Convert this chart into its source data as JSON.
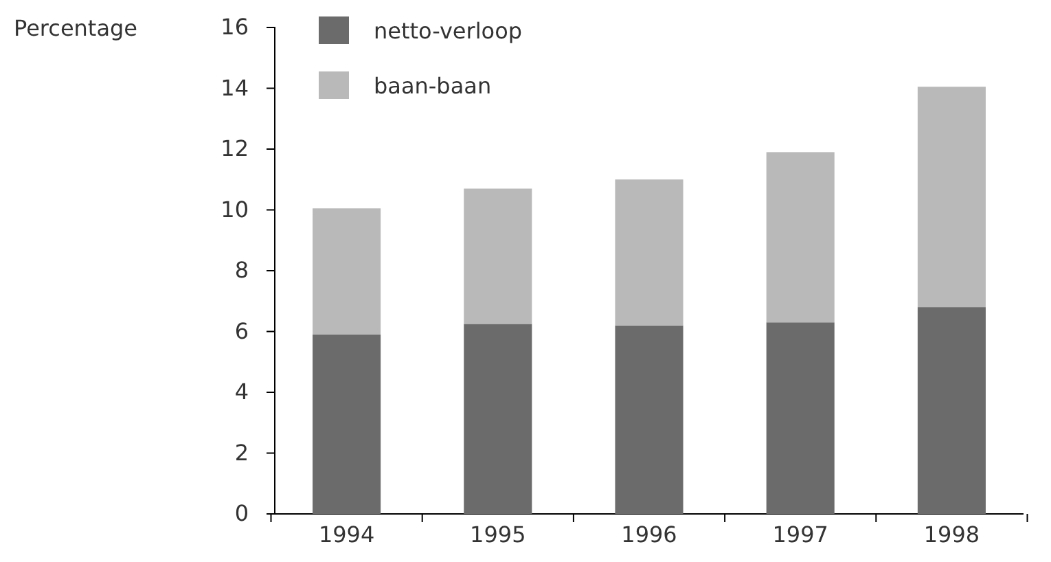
{
  "chart_data": {
    "type": "bar",
    "ylabel": "Percentage",
    "categories": [
      "1994",
      "1995",
      "1996",
      "1997",
      "1998"
    ],
    "stacked": true,
    "series": [
      {
        "name": "netto-verloop",
        "color": "#6b6b6b",
        "values": [
          5.9,
          6.25,
          6.2,
          6.3,
          6.8
        ]
      },
      {
        "name": "baan-baan",
        "color": "#b9b9b9",
        "values": [
          4.15,
          4.45,
          4.8,
          5.6,
          7.25
        ]
      }
    ],
    "ylim": [
      0,
      16
    ],
    "yticks": [
      0,
      2,
      4,
      6,
      8,
      10,
      12,
      14,
      16
    ],
    "legend": "top left"
  }
}
